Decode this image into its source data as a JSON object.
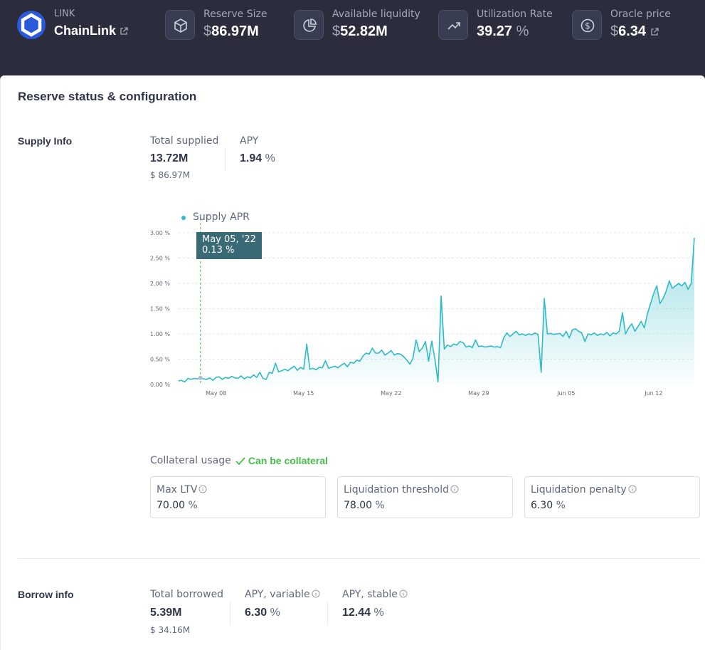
{
  "header": {
    "asset_symbol": "LINK",
    "asset_name": "ChainLink",
    "stats": [
      {
        "label": "Reserve Size",
        "currency": "$",
        "value": "86.97M",
        "suffix": "",
        "icon": "cube-icon"
      },
      {
        "label": "Available liquidity",
        "currency": "$",
        "value": "52.82M",
        "suffix": "",
        "icon": "pie-chart-icon"
      },
      {
        "label": "Utilization Rate",
        "currency": "",
        "value": "39.27",
        "suffix": "%",
        "icon": "trending-up-icon"
      },
      {
        "label": "Oracle price",
        "currency": "$",
        "value": "6.34",
        "suffix": "",
        "icon": "dollar-circle-icon"
      }
    ]
  },
  "card": {
    "title": "Reserve status & configuration"
  },
  "supply": {
    "section_label": "Supply Info",
    "total_supplied_label": "Total supplied",
    "total_supplied_value": "13.72M",
    "total_supplied_usd": "$ 86.97M",
    "apy_label": "APY",
    "apy_value": "1.94",
    "apy_unit": "%"
  },
  "chart_data": {
    "type": "area",
    "legend": [
      "Supply APR"
    ],
    "y_ticks": [
      "3.00 %",
      "2.50 %",
      "2.00 %",
      "1.50 %",
      "1.00 %",
      "0.50 %",
      "0.00 %"
    ],
    "x_ticks": [
      "May 08",
      "May 15",
      "May 22",
      "May 29",
      "Jun 05",
      "Jun 12"
    ],
    "ylim": [
      0,
      3.0
    ],
    "grid": true,
    "tooltip": {
      "date": "May 05, '22",
      "value": "0.13 %"
    },
    "series": [
      {
        "name": "Supply APR",
        "color": "#2ebac6",
        "points": [
          [
            0,
            0.07
          ],
          [
            0.25,
            0.08
          ],
          [
            0.5,
            0.05
          ],
          [
            0.75,
            0.12
          ],
          [
            1,
            0.1
          ],
          [
            1.25,
            0.12
          ],
          [
            1.5,
            0.11
          ],
          [
            1.75,
            0.13
          ],
          [
            2,
            0.11
          ],
          [
            2.25,
            0.1
          ],
          [
            2.5,
            0.13
          ],
          [
            2.75,
            0.08
          ],
          [
            3,
            0.14
          ],
          [
            3.25,
            0.15
          ],
          [
            3.5,
            0.1
          ],
          [
            3.75,
            0.14
          ],
          [
            4,
            0.12
          ],
          [
            4.25,
            0.16
          ],
          [
            4.5,
            0.13
          ],
          [
            4.75,
            0.12
          ],
          [
            5,
            0.17
          ],
          [
            5.25,
            0.11
          ],
          [
            5.5,
            0.15
          ],
          [
            5.75,
            0.13
          ],
          [
            6,
            0.19
          ],
          [
            6.25,
            0.14
          ],
          [
            6.5,
            0.24
          ],
          [
            6.75,
            0.12
          ],
          [
            7,
            0.1
          ],
          [
            7.25,
            0.24
          ],
          [
            7.5,
            0.22
          ],
          [
            7.75,
            0.42
          ],
          [
            8,
            0.25
          ],
          [
            8.25,
            0.27
          ],
          [
            8.5,
            0.3
          ],
          [
            8.75,
            0.27
          ],
          [
            9,
            0.32
          ],
          [
            9.25,
            0.36
          ],
          [
            9.5,
            0.28
          ],
          [
            9.75,
            0.34
          ],
          [
            10,
            0.3
          ],
          [
            10.25,
            0.8
          ],
          [
            10.5,
            0.3
          ],
          [
            10.75,
            0.32
          ],
          [
            11,
            0.29
          ],
          [
            11.25,
            0.34
          ],
          [
            11.5,
            0.33
          ],
          [
            11.75,
            0.47
          ],
          [
            12,
            0.32
          ],
          [
            12.25,
            0.34
          ],
          [
            12.5,
            0.36
          ],
          [
            12.75,
            0.33
          ],
          [
            13,
            0.38
          ],
          [
            13.25,
            0.42
          ],
          [
            13.5,
            0.35
          ],
          [
            13.75,
            0.44
          ],
          [
            14,
            0.42
          ],
          [
            14.25,
            0.48
          ],
          [
            14.5,
            0.46
          ],
          [
            14.75,
            0.56
          ],
          [
            15,
            0.62
          ],
          [
            15.25,
            0.6
          ],
          [
            15.5,
            0.72
          ],
          [
            15.75,
            0.62
          ],
          [
            16,
            0.62
          ],
          [
            16.25,
            0.68
          ],
          [
            16.5,
            0.58
          ],
          [
            16.75,
            0.62
          ],
          [
            17,
            0.67
          ],
          [
            17.25,
            0.58
          ],
          [
            17.5,
            0.61
          ],
          [
            17.75,
            0.6
          ],
          [
            18,
            0.55
          ],
          [
            18.25,
            0.48
          ],
          [
            18.5,
            0.4
          ],
          [
            18.75,
            0.52
          ],
          [
            19,
            0.88
          ],
          [
            19.25,
            0.65
          ],
          [
            19.5,
            0.72
          ],
          [
            19.75,
            0.85
          ],
          [
            20,
            0.46
          ],
          [
            20.25,
            0.86
          ],
          [
            20.5,
            0.5
          ],
          [
            20.75,
            0.05
          ],
          [
            21,
            1.75
          ],
          [
            21.25,
            0.7
          ],
          [
            21.5,
            0.78
          ],
          [
            21.75,
            0.75
          ],
          [
            22,
            0.8
          ],
          [
            22.25,
            0.78
          ],
          [
            22.5,
            0.85
          ],
          [
            22.75,
            0.83
          ],
          [
            23,
            0.74
          ],
          [
            23.25,
            0.76
          ],
          [
            23.5,
            0.73
          ],
          [
            23.75,
            0.88
          ],
          [
            24,
            0.75
          ],
          [
            24.25,
            0.76
          ],
          [
            24.5,
            0.74
          ],
          [
            24.75,
            0.75
          ],
          [
            25,
            0.76
          ],
          [
            25.25,
            0.74
          ],
          [
            25.5,
            0.75
          ],
          [
            25.75,
            0.73
          ],
          [
            26,
            0.92
          ],
          [
            26.25,
            1.02
          ],
          [
            26.5,
            0.95
          ],
          [
            26.75,
            1.0
          ],
          [
            27,
            1.05
          ],
          [
            27.25,
            0.98
          ],
          [
            27.5,
            1.0
          ],
          [
            27.75,
            0.97
          ],
          [
            28,
            1.0
          ],
          [
            28.25,
            0.98
          ],
          [
            28.5,
            1.02
          ],
          [
            28.75,
            0.99
          ],
          [
            29,
            0.24
          ],
          [
            29.25,
            1.7
          ],
          [
            29.5,
            1.0
          ],
          [
            29.75,
            1.01
          ],
          [
            30,
            0.99
          ],
          [
            30.25,
            1.0
          ],
          [
            30.5,
            1.01
          ],
          [
            30.75,
            0.95
          ],
          [
            31,
            1.05
          ],
          [
            31.25,
            0.92
          ],
          [
            31.5,
            1.08
          ],
          [
            31.75,
            1.1
          ],
          [
            32,
            1.05
          ],
          [
            32.25,
            1.02
          ],
          [
            32.5,
            0.85
          ],
          [
            32.75,
            1.0
          ],
          [
            33,
            0.98
          ],
          [
            33.25,
            1.02
          ],
          [
            33.5,
            0.97
          ],
          [
            33.75,
            1.0
          ],
          [
            34,
            0.98
          ],
          [
            34.25,
            1.03
          ],
          [
            34.5,
            0.96
          ],
          [
            34.75,
            1.02
          ],
          [
            35,
            1.0
          ],
          [
            35.25,
            1.05
          ],
          [
            35.5,
            1.42
          ],
          [
            35.75,
            1.0
          ],
          [
            36,
            1.12
          ],
          [
            36.25,
            1.2
          ],
          [
            36.5,
            1.05
          ],
          [
            36.75,
            1.15
          ],
          [
            37,
            1.25
          ],
          [
            37.25,
            1.12
          ],
          [
            37.5,
            1.4
          ],
          [
            37.75,
            1.6
          ],
          [
            38,
            1.8
          ],
          [
            38.25,
            1.95
          ],
          [
            38.5,
            1.6
          ],
          [
            38.75,
            1.7
          ],
          [
            39,
            1.85
          ],
          [
            39.25,
            2.05
          ],
          [
            39.5,
            1.9
          ],
          [
            39.75,
            1.95
          ],
          [
            40,
            2.0
          ],
          [
            40.25,
            1.95
          ],
          [
            40.5,
            2.02
          ],
          [
            40.75,
            1.88
          ],
          [
            41,
            2.0
          ],
          [
            41.25,
            2.9
          ]
        ]
      }
    ]
  },
  "collateral": {
    "label": "Collateral usage",
    "status": "Can be collateral",
    "items": [
      {
        "label": "Max LTV",
        "value": "70.00",
        "unit": "%"
      },
      {
        "label": "Liquidation threshold",
        "value": "78.00",
        "unit": "%"
      },
      {
        "label": "Liquidation penalty",
        "value": "6.30",
        "unit": "%"
      }
    ]
  },
  "borrow": {
    "section_label": "Borrow info",
    "total_borrowed_label": "Total borrowed",
    "total_borrowed_value": "5.39M",
    "total_borrowed_usd": "$ 34.16M",
    "apy_variable_label": "APY, variable",
    "apy_variable_value": "6.30",
    "apy_stable_label": "APY, stable",
    "apy_stable_value": "12.44",
    "unit": "%"
  },
  "colors": {
    "header_bg": "#2b2d3c",
    "accent_line": "#2ebac6",
    "tooltip_bg": "#3a6a75",
    "success": "#46bc4b",
    "chainlink_blue": "#2a5ada"
  }
}
